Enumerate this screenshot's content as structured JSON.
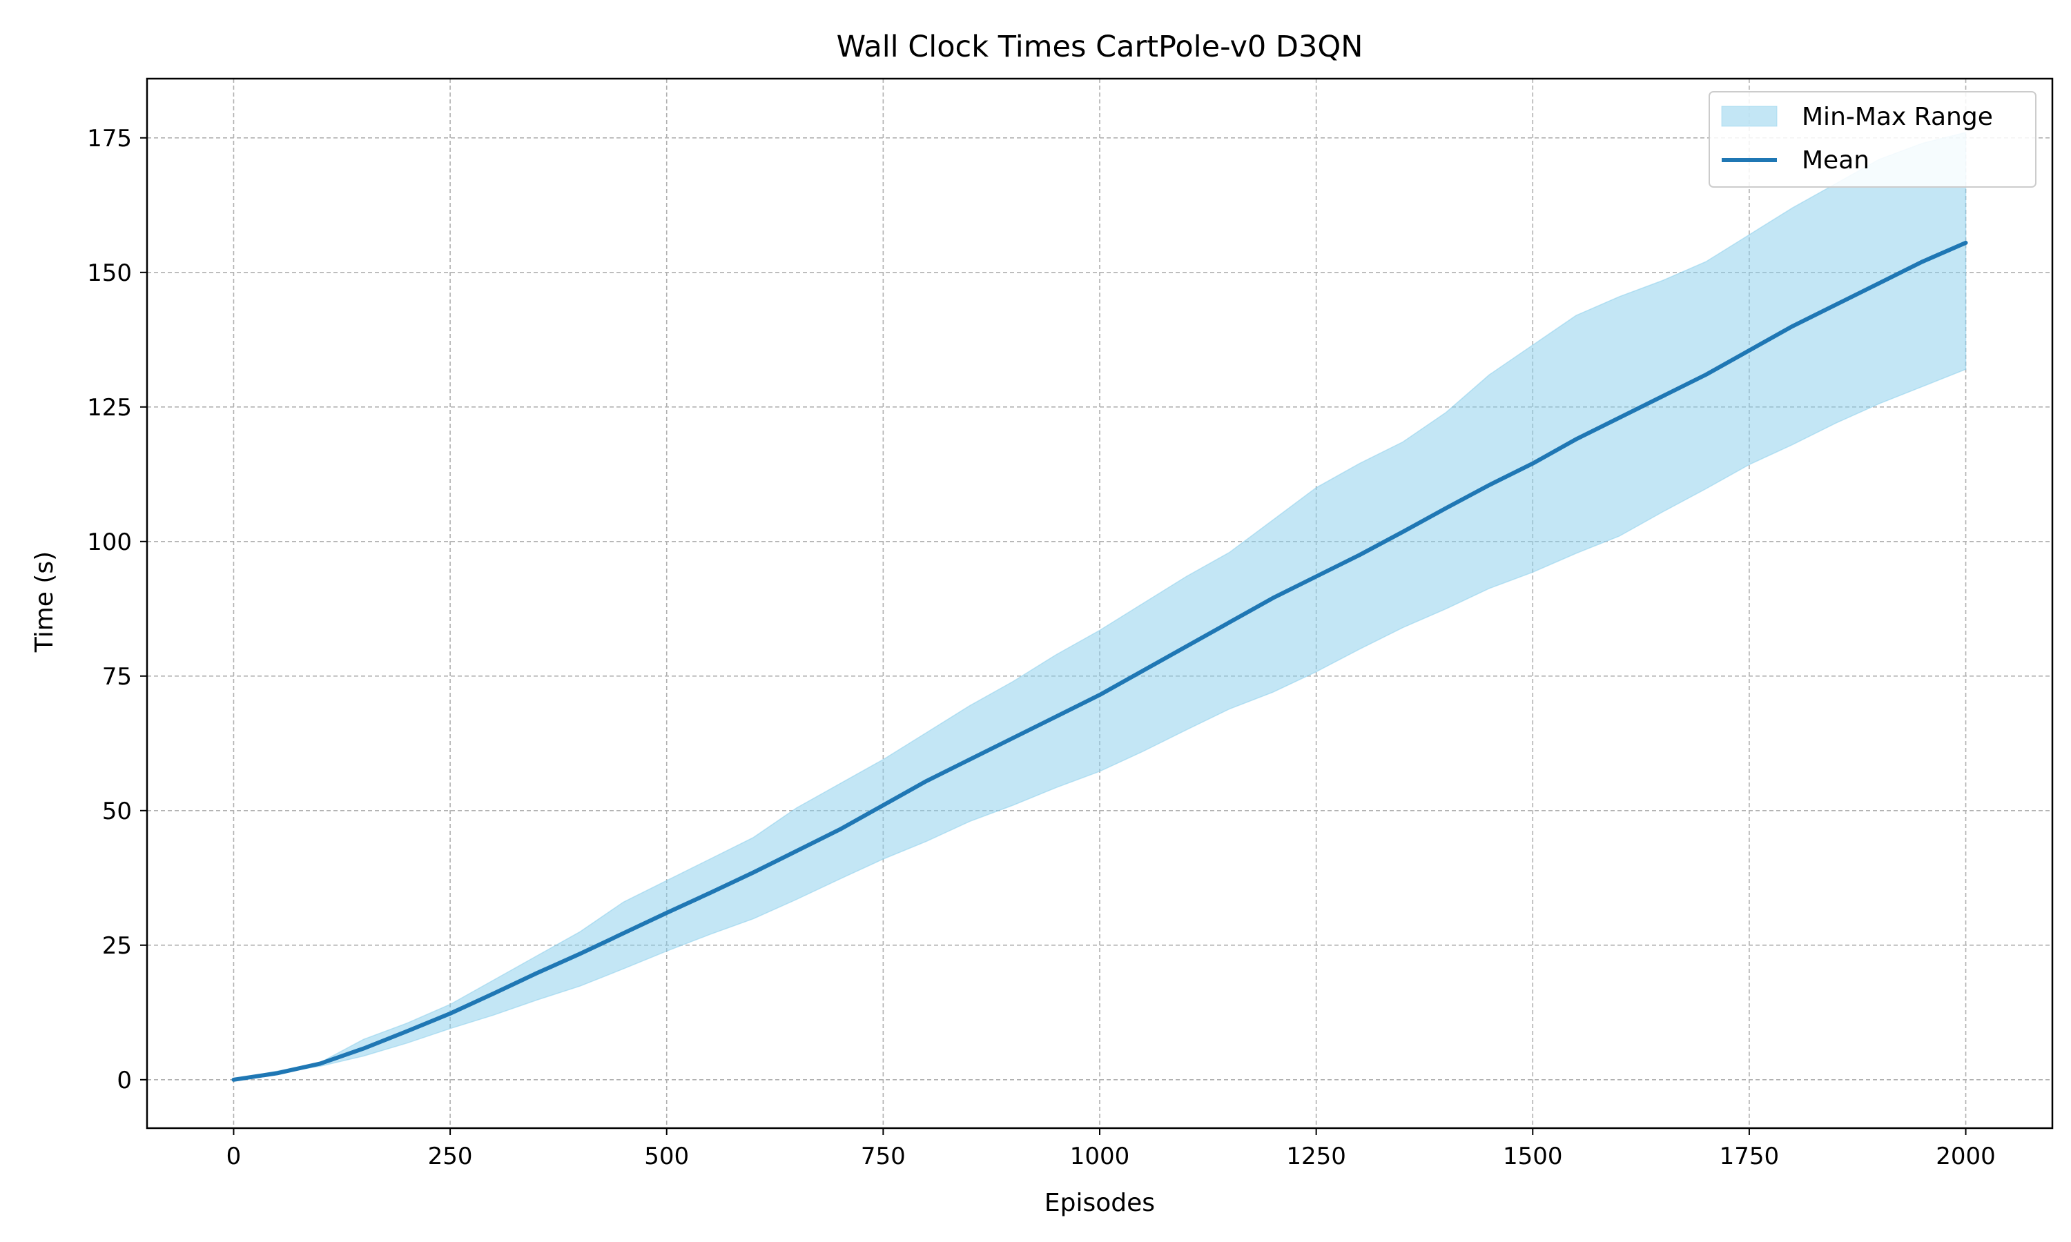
{
  "chart_data": {
    "type": "area",
    "title": "Wall Clock Times CartPole-v0 D3QN",
    "xlabel": "Episodes",
    "ylabel": "Time (s)",
    "xlim": [
      -100,
      2100
    ],
    "ylim": [
      -9,
      186
    ],
    "xticks": [
      0,
      250,
      500,
      750,
      1000,
      1250,
      1500,
      1750,
      2000
    ],
    "yticks": [
      0,
      25,
      50,
      75,
      100,
      125,
      150,
      175
    ],
    "grid": true,
    "legend_position": "top-right",
    "x": [
      0,
      50,
      100,
      150,
      200,
      250,
      300,
      350,
      400,
      450,
      500,
      550,
      600,
      650,
      700,
      750,
      800,
      850,
      900,
      950,
      1000,
      1050,
      1100,
      1150,
      1200,
      1250,
      1300,
      1350,
      1400,
      1450,
      1500,
      1550,
      1600,
      1650,
      1700,
      1750,
      1800,
      1850,
      1900,
      1950,
      2000
    ],
    "series": [
      {
        "name": "Min-Max Range",
        "kind": "band",
        "color": "#87ceeb",
        "lower": [
          0,
          1.2,
          2.5,
          4.4,
          6.8,
          9.5,
          12.0,
          14.8,
          17.4,
          20.6,
          23.9,
          27.0,
          29.9,
          33.5,
          37.3,
          41.0,
          44.3,
          48.0,
          51.0,
          54.3,
          57.3,
          61.0,
          65.0,
          68.9,
          72.0,
          75.8,
          80.0,
          84.0,
          87.5,
          91.3,
          94.3,
          97.8,
          101.0,
          105.5,
          109.8,
          114.3,
          118.0,
          122.0,
          125.6,
          128.8,
          132.0
        ],
        "upper": [
          0,
          1.6,
          3.2,
          7.5,
          10.5,
          14.0,
          18.5,
          23.0,
          27.5,
          33.0,
          37.0,
          41.0,
          45.0,
          50.5,
          55.0,
          59.5,
          64.5,
          69.5,
          74.0,
          79.0,
          83.5,
          88.5,
          93.5,
          98.0,
          104.0,
          110.0,
          114.5,
          118.5,
          124.0,
          131.0,
          136.5,
          142.0,
          145.5,
          148.5,
          152.0,
          157.0,
          162.0,
          166.5,
          171.0,
          174.0,
          176.0
        ]
      },
      {
        "name": "Mean",
        "kind": "line",
        "color": "#1f77b4",
        "values": [
          0,
          1.2,
          3.0,
          5.8,
          9.0,
          12.3,
          16.0,
          19.8,
          23.4,
          27.2,
          31.0,
          34.7,
          38.5,
          42.5,
          46.5,
          51.0,
          55.5,
          59.5,
          63.5,
          67.5,
          71.5,
          76.0,
          80.5,
          85.0,
          89.5,
          93.5,
          97.5,
          101.8,
          106.2,
          110.5,
          114.5,
          119.0,
          123.0,
          127.0,
          131.0,
          135.5,
          140.0,
          144.0,
          148.0,
          152.0,
          155.5
        ]
      }
    ]
  }
}
